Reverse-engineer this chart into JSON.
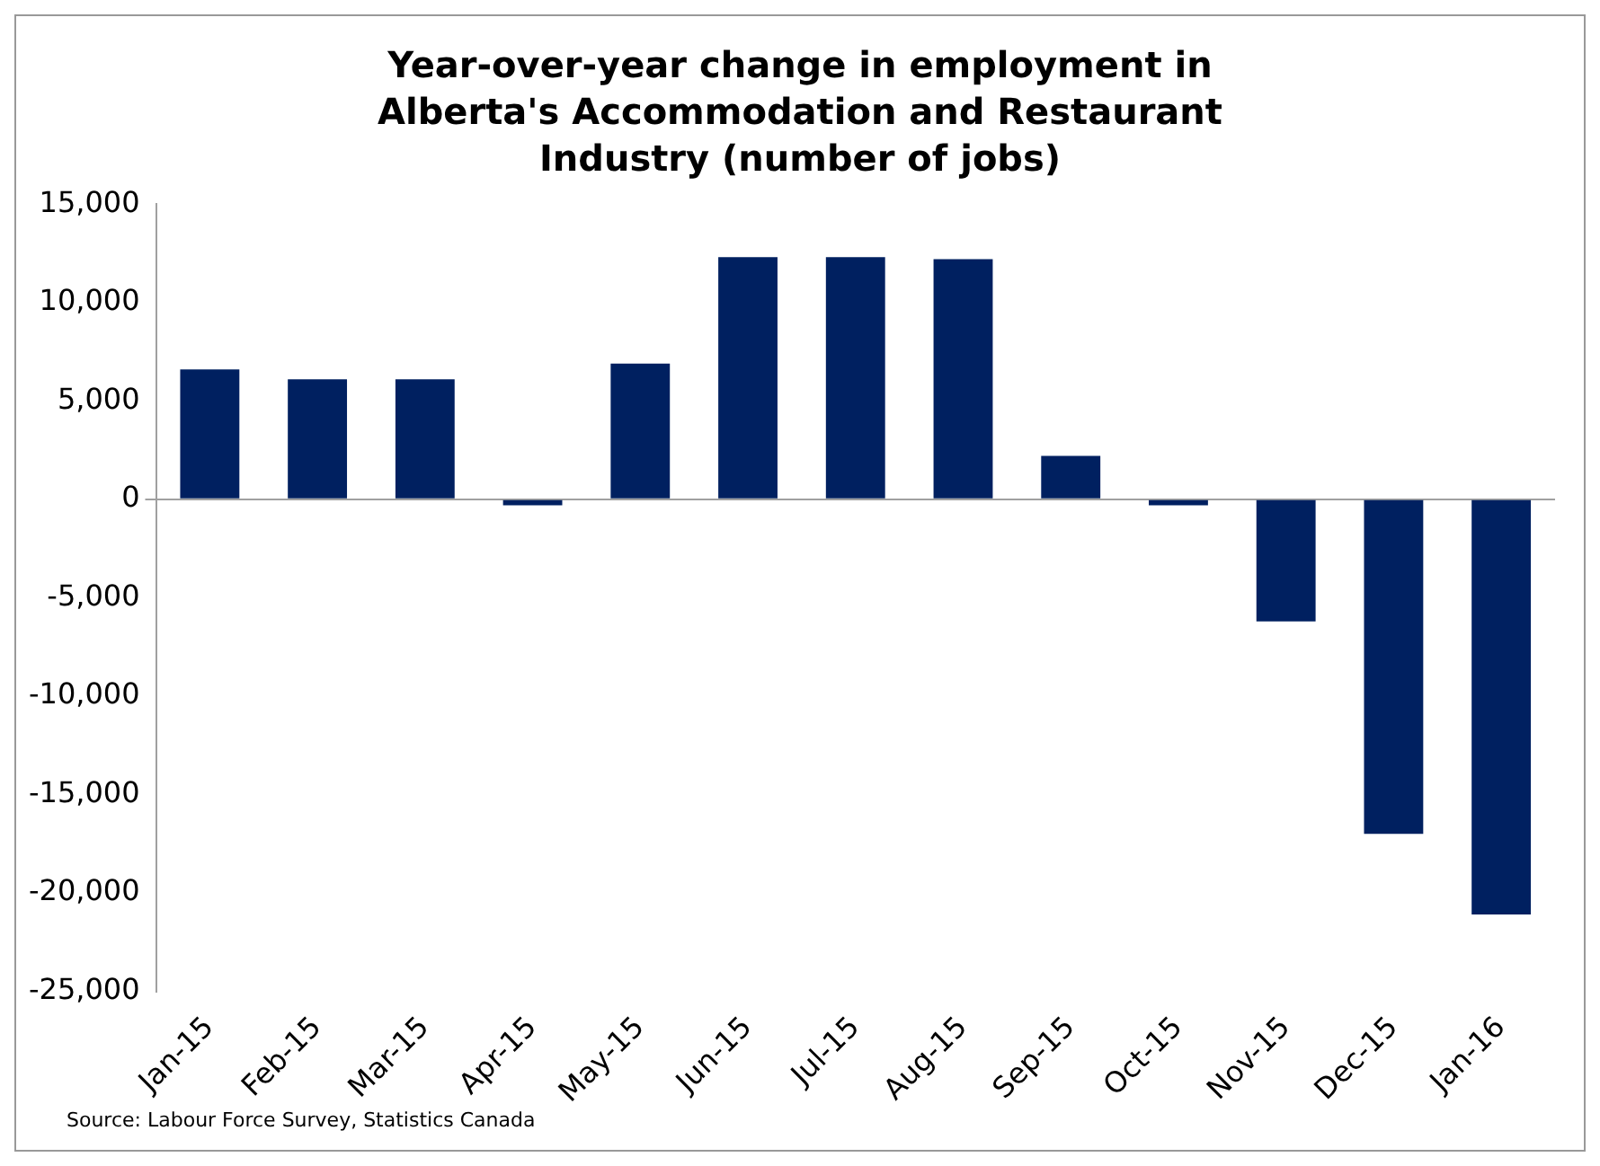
{
  "chart_data": {
    "type": "bar",
    "title": "Year-over-year change in employment in Alberta's Accommodation and Restaurant Industry (number of jobs)",
    "categories": [
      "Jan-15",
      "Feb-15",
      "Mar-15",
      "Apr-15",
      "May-15",
      "Jun-15",
      "Jul-15",
      "Aug-15",
      "Sep-15",
      "Oct-15",
      "Nov-15",
      "Dec-15",
      "Jan-16"
    ],
    "values": [
      6600,
      6100,
      6100,
      -300,
      6900,
      12300,
      12300,
      12200,
      2200,
      -300,
      -6200,
      -17000,
      -21100
    ],
    "color": "#002060",
    "ylim": [
      -25000,
      15000
    ],
    "yticks": [
      {
        "value": -25000,
        "label": "-25,000"
      },
      {
        "value": -20000,
        "label": "-20,000"
      },
      {
        "value": -15000,
        "label": "-15,000"
      },
      {
        "value": -10000,
        "label": "-10,000"
      },
      {
        "value": -5000,
        "label": "-5,000"
      },
      {
        "value": 0,
        "label": "0"
      },
      {
        "value": 5000,
        "label": "5,000"
      },
      {
        "value": 10000,
        "label": "10,000"
      },
      {
        "value": 15000,
        "label": "15,000"
      }
    ],
    "annotations": [
      "Source:  Labour Force Survey, Statistics Canada"
    ]
  }
}
